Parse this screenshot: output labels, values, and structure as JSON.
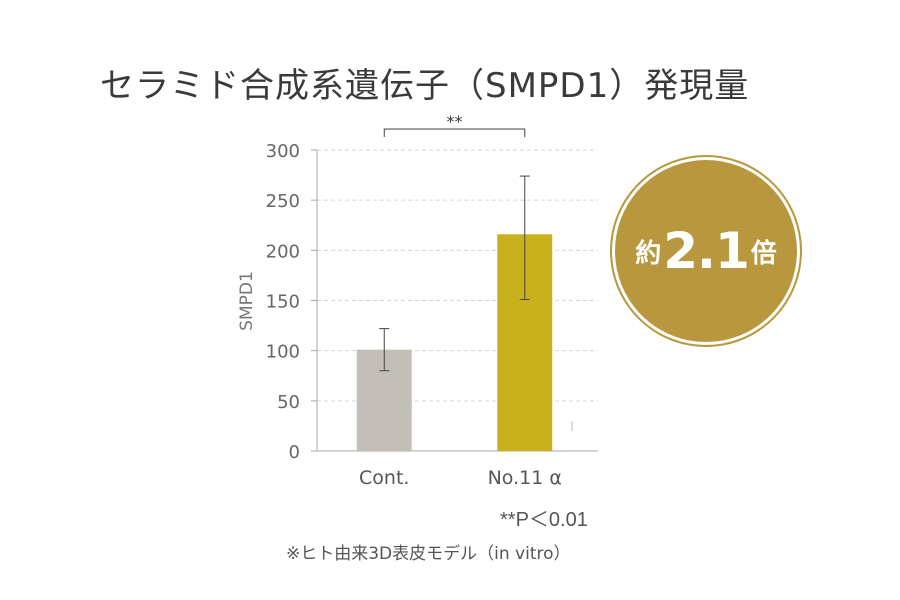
{
  "title": "セラミド合成系遺伝子（SMPD1）発現量",
  "badge": {
    "prefix": "約",
    "value": "2.1",
    "suffix": "倍",
    "color": "#b8973f"
  },
  "significance_note": "**P＜0.01",
  "footnote": "※ヒト由来3D表皮モデル（in vitro）",
  "chart_data": {
    "type": "bar",
    "categories": [
      "Cont.",
      "No.11 α"
    ],
    "values": [
      101,
      216
    ],
    "error_bars": [
      {
        "low": 80,
        "high": 122
      },
      {
        "low": 151,
        "high": 274
      }
    ],
    "bar_colors": [
      "#c3bfb8",
      "#c8b11d"
    ],
    "ylabel": "SMPD1",
    "xlabel": "",
    "ylim": [
      0,
      300
    ],
    "yticks": [
      0,
      50,
      100,
      150,
      200,
      250,
      300
    ],
    "grid": true,
    "significance": {
      "between": [
        0,
        1
      ],
      "label": "**"
    }
  }
}
